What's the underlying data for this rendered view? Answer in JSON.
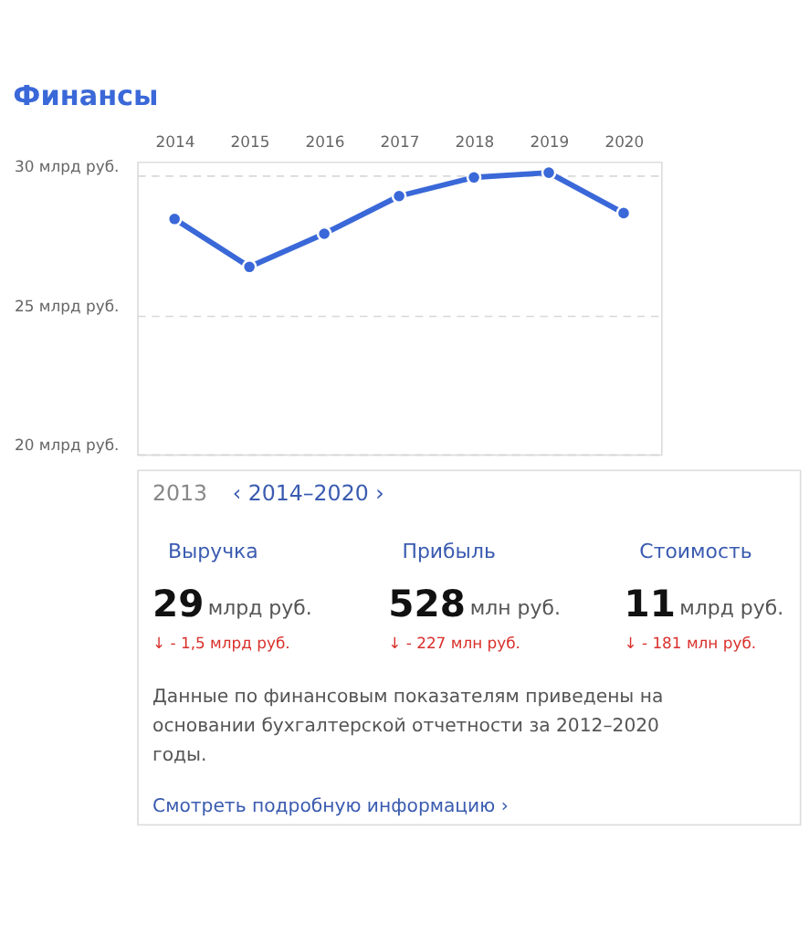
{
  "chart_data": {
    "type": "line",
    "title": "Финансы",
    "categories": [
      "2014",
      "2015",
      "2016",
      "2017",
      "2018",
      "2019",
      "2020"
    ],
    "series": [
      {
        "color": "#3a68d8",
        "values": [
          28.44,
          26.72,
          27.91,
          29.26,
          29.93,
          30.1,
          28.65
        ]
      }
    ],
    "ylim": [
      20,
      30.5
    ],
    "yticks": [
      {
        "value": 20,
        "label": "20 млрд руб."
      },
      {
        "value": 25,
        "label": "25 млрд руб."
      },
      {
        "value": 30,
        "label": "30 млрд руб."
      }
    ],
    "grid": "y",
    "marker": "circle",
    "line_style": "solid",
    "annotations": [
      "2013",
      "‹  2014–2020  ›",
      "Выручка",
      "Прибыль",
      "Стоимость",
      "29",
      "млрд руб.",
      "528",
      "млн руб.",
      "11",
      "млрд руб.",
      "↓ - 1,5 млрд руб.",
      "↓ - 227 млн руб.",
      "↓ - 181 млн руб.",
      "Данные по финансовым показателям приведены на основании бухгалтерской отчетности за 2012–2020 годы.",
      "Смотреть подробную информацию  ›"
    ]
  }
}
